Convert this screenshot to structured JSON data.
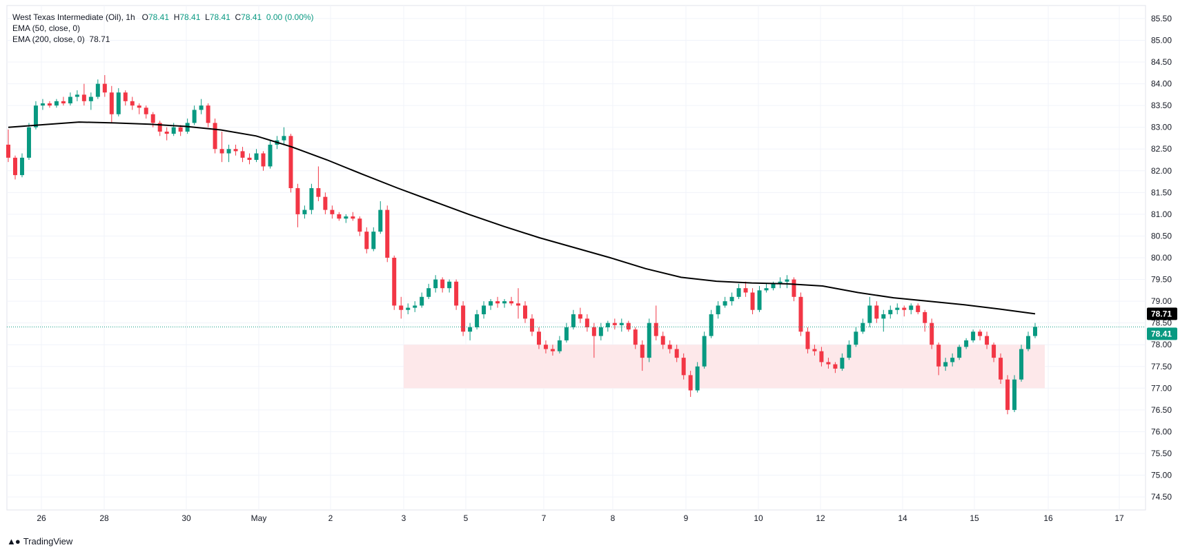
{
  "legend": {
    "symbol": "West Texas Intermediate (Oil), 1h",
    "open_label": "O",
    "open": "78.41",
    "high_label": "H",
    "high": "78.41",
    "low_label": "L",
    "low": "78.41",
    "close_label": "C",
    "close": "78.41",
    "change": "0.00 (0.00%)",
    "ema50": "EMA (50, close, 0)",
    "ema200": "EMA (200, close, 0)",
    "ema200_value": "78.71"
  },
  "brand": {
    "name": "TradingView"
  },
  "colors": {
    "up": "#089981",
    "down": "#f23645",
    "ema": "#000000",
    "zone": "#fde8ea",
    "price_badge": "#089981",
    "ema_badge": "#000000"
  },
  "chart_data": {
    "type": "candlestick",
    "ylim": [
      74.2,
      85.8
    ],
    "price_ticks": [
      "85.50",
      "85.00",
      "84.50",
      "84.00",
      "83.50",
      "83.00",
      "82.50",
      "82.00",
      "81.50",
      "81.00",
      "80.50",
      "80.00",
      "79.50",
      "79.00",
      "78.50",
      "78.00",
      "77.50",
      "77.00",
      "76.50",
      "76.00",
      "75.50",
      "75.00",
      "74.50"
    ],
    "date_ticks": [
      "26",
      "28",
      "30",
      "May",
      "2",
      "3",
      "5",
      "7",
      "8",
      "9",
      "10",
      "12",
      "14",
      "15",
      "16",
      "17"
    ],
    "last_price": "78.41",
    "ema200_last": "78.71",
    "support_zone": {
      "low": 77.0,
      "high": 78.0,
      "from": "3",
      "to": "16"
    },
    "ema200": [
      83.0,
      83.06,
      83.12,
      83.1,
      83.07,
      83.02,
      82.94,
      82.8,
      82.55,
      82.25,
      81.92,
      81.6,
      81.3,
      81.0,
      80.72,
      80.46,
      80.23,
      80.0,
      79.75,
      79.55,
      79.46,
      79.42,
      79.4,
      79.35,
      79.2,
      79.08,
      79.0,
      78.92,
      78.82,
      78.71
    ],
    "candles": [
      [
        82.6,
        82.95,
        82.2,
        82.3
      ],
      [
        82.3,
        82.35,
        81.8,
        81.9
      ],
      [
        81.9,
        82.4,
        81.85,
        82.3
      ],
      [
        82.3,
        83.1,
        82.25,
        83.0
      ],
      [
        83.0,
        83.6,
        82.95,
        83.5
      ],
      [
        83.5,
        83.65,
        83.4,
        83.55
      ],
      [
        83.55,
        83.6,
        83.45,
        83.5
      ],
      [
        83.5,
        83.65,
        83.45,
        83.6
      ],
      [
        83.6,
        83.7,
        83.5,
        83.55
      ],
      [
        83.55,
        83.8,
        83.5,
        83.7
      ],
      [
        83.7,
        83.85,
        83.6,
        83.75
      ],
      [
        83.75,
        84.0,
        83.5,
        83.6
      ],
      [
        83.6,
        83.8,
        83.4,
        83.7
      ],
      [
        83.7,
        84.1,
        83.65,
        84.0
      ],
      [
        84.0,
        84.2,
        83.7,
        83.8
      ],
      [
        83.8,
        83.95,
        83.1,
        83.3
      ],
      [
        83.3,
        83.9,
        83.25,
        83.8
      ],
      [
        83.8,
        83.85,
        83.5,
        83.6
      ],
      [
        83.6,
        83.7,
        83.4,
        83.5
      ],
      [
        83.5,
        83.55,
        83.3,
        83.45
      ],
      [
        83.45,
        83.5,
        83.2,
        83.3
      ],
      [
        83.3,
        83.35,
        83.0,
        83.1
      ],
      [
        83.1,
        83.15,
        82.8,
        82.9
      ],
      [
        82.9,
        83.0,
        82.7,
        82.85
      ],
      [
        82.85,
        83.1,
        82.8,
        83.0
      ],
      [
        83.0,
        83.05,
        82.8,
        82.9
      ],
      [
        82.9,
        83.2,
        82.85,
        83.1
      ],
      [
        83.1,
        83.5,
        83.05,
        83.4
      ],
      [
        83.4,
        83.65,
        83.3,
        83.5
      ],
      [
        83.5,
        83.55,
        83.0,
        83.1
      ],
      [
        83.1,
        83.2,
        82.4,
        82.5
      ],
      [
        82.5,
        82.9,
        82.2,
        82.4
      ],
      [
        82.4,
        82.6,
        82.2,
        82.5
      ],
      [
        82.5,
        82.6,
        82.35,
        82.45
      ],
      [
        82.45,
        82.55,
        82.2,
        82.3
      ],
      [
        82.3,
        82.4,
        82.15,
        82.25
      ],
      [
        82.25,
        82.5,
        82.2,
        82.4
      ],
      [
        82.4,
        82.45,
        82.0,
        82.1
      ],
      [
        82.1,
        82.7,
        82.05,
        82.6
      ],
      [
        82.6,
        82.8,
        82.5,
        82.7
      ],
      [
        82.7,
        83.0,
        82.6,
        82.8
      ],
      [
        82.8,
        82.85,
        81.5,
        81.6
      ],
      [
        81.6,
        81.7,
        80.7,
        81.0
      ],
      [
        81.0,
        81.2,
        80.9,
        81.1
      ],
      [
        81.1,
        81.7,
        81.0,
        81.6
      ],
      [
        81.6,
        82.1,
        81.3,
        81.4
      ],
      [
        81.4,
        81.5,
        81.0,
        81.1
      ],
      [
        81.1,
        81.2,
        80.9,
        81.0
      ],
      [
        81.0,
        81.05,
        80.85,
        80.9
      ],
      [
        80.9,
        81.0,
        80.8,
        80.95
      ],
      [
        80.95,
        81.05,
        80.85,
        80.9
      ],
      [
        80.9,
        80.95,
        80.5,
        80.6
      ],
      [
        80.6,
        80.7,
        80.1,
        80.2
      ],
      [
        80.2,
        80.7,
        80.15,
        80.6
      ],
      [
        80.6,
        81.3,
        80.55,
        81.1
      ],
      [
        81.1,
        81.2,
        79.9,
        80.0
      ],
      [
        80.0,
        80.05,
        78.8,
        78.9
      ],
      [
        78.9,
        79.1,
        78.6,
        78.8
      ],
      [
        78.8,
        78.95,
        78.7,
        78.85
      ],
      [
        78.85,
        79.0,
        78.75,
        78.9
      ],
      [
        78.9,
        79.2,
        78.85,
        79.1
      ],
      [
        79.1,
        79.4,
        79.05,
        79.3
      ],
      [
        79.3,
        79.6,
        79.2,
        79.5
      ],
      [
        79.5,
        79.55,
        79.2,
        79.3
      ],
      [
        79.3,
        79.5,
        79.2,
        79.45
      ],
      [
        79.45,
        79.5,
        78.8,
        78.9
      ],
      [
        78.9,
        79.0,
        78.2,
        78.3
      ],
      [
        78.3,
        78.5,
        78.1,
        78.4
      ],
      [
        78.4,
        78.8,
        78.35,
        78.7
      ],
      [
        78.7,
        79.0,
        78.6,
        78.9
      ],
      [
        78.9,
        79.05,
        78.8,
        79.0
      ],
      [
        79.0,
        79.1,
        78.85,
        78.95
      ],
      [
        78.95,
        79.05,
        78.85,
        79.0
      ],
      [
        79.0,
        79.1,
        78.9,
        78.95
      ],
      [
        78.95,
        79.3,
        78.6,
        78.9
      ],
      [
        78.9,
        79.0,
        78.5,
        78.6
      ],
      [
        78.6,
        78.7,
        78.2,
        78.3
      ],
      [
        78.3,
        78.4,
        77.9,
        78.0
      ],
      [
        78.0,
        78.1,
        77.8,
        77.9
      ],
      [
        77.9,
        78.0,
        77.75,
        77.85
      ],
      [
        77.85,
        78.2,
        77.8,
        78.1
      ],
      [
        78.1,
        78.5,
        78.05,
        78.4
      ],
      [
        78.4,
        78.8,
        78.35,
        78.7
      ],
      [
        78.7,
        78.85,
        78.5,
        78.6
      ],
      [
        78.6,
        78.7,
        78.3,
        78.4
      ],
      [
        78.4,
        78.5,
        77.7,
        78.2
      ],
      [
        78.2,
        78.5,
        78.1,
        78.4
      ],
      [
        78.4,
        78.55,
        78.3,
        78.5
      ],
      [
        78.5,
        78.6,
        78.35,
        78.45
      ],
      [
        78.45,
        78.6,
        78.3,
        78.5
      ],
      [
        78.5,
        78.55,
        78.3,
        78.35
      ],
      [
        78.35,
        78.4,
        77.9,
        78.0
      ],
      [
        78.0,
        78.1,
        77.4,
        77.7
      ],
      [
        77.7,
        78.6,
        77.6,
        78.5
      ],
      [
        78.5,
        78.9,
        78.1,
        78.2
      ],
      [
        78.2,
        78.3,
        77.9,
        78.0
      ],
      [
        78.0,
        78.1,
        77.8,
        77.9
      ],
      [
        77.9,
        78.0,
        77.6,
        77.7
      ],
      [
        77.7,
        77.8,
        77.2,
        77.3
      ],
      [
        77.3,
        77.4,
        76.8,
        76.95
      ],
      [
        76.95,
        77.6,
        76.9,
        77.5
      ],
      [
        77.5,
        78.3,
        77.45,
        78.2
      ],
      [
        78.2,
        78.8,
        78.15,
        78.7
      ],
      [
        78.7,
        79.0,
        78.6,
        78.9
      ],
      [
        78.9,
        79.1,
        78.85,
        79.0
      ],
      [
        79.0,
        79.2,
        78.9,
        79.1
      ],
      [
        79.1,
        79.4,
        79.05,
        79.3
      ],
      [
        79.3,
        79.45,
        79.1,
        79.2
      ],
      [
        79.2,
        79.3,
        78.7,
        78.8
      ],
      [
        78.8,
        79.35,
        78.75,
        79.25
      ],
      [
        79.25,
        79.4,
        79.2,
        79.3
      ],
      [
        79.3,
        79.45,
        79.25,
        79.4
      ],
      [
        79.4,
        79.55,
        79.3,
        79.45
      ],
      [
        79.45,
        79.6,
        79.3,
        79.5
      ],
      [
        79.5,
        79.55,
        79.0,
        79.1
      ],
      [
        79.1,
        79.2,
        78.2,
        78.3
      ],
      [
        78.3,
        78.4,
        77.8,
        77.9
      ],
      [
        77.9,
        78.0,
        77.75,
        77.85
      ],
      [
        77.85,
        77.95,
        77.5,
        77.6
      ],
      [
        77.6,
        77.7,
        77.45,
        77.55
      ],
      [
        77.55,
        77.6,
        77.35,
        77.45
      ],
      [
        77.45,
        77.8,
        77.4,
        77.7
      ],
      [
        77.7,
        78.1,
        77.65,
        78.0
      ],
      [
        78.0,
        78.4,
        77.95,
        78.3
      ],
      [
        78.3,
        78.6,
        78.25,
        78.5
      ],
      [
        78.5,
        79.1,
        78.4,
        78.9
      ],
      [
        78.9,
        79.0,
        78.5,
        78.6
      ],
      [
        78.6,
        78.8,
        78.3,
        78.7
      ],
      [
        78.7,
        78.9,
        78.6,
        78.8
      ],
      [
        78.8,
        78.95,
        78.7,
        78.85
      ],
      [
        78.85,
        78.9,
        78.65,
        78.8
      ],
      [
        78.8,
        78.95,
        78.7,
        78.9
      ],
      [
        78.9,
        78.95,
        78.7,
        78.75
      ],
      [
        78.75,
        78.8,
        78.3,
        78.5
      ],
      [
        78.5,
        78.6,
        77.9,
        78.0
      ],
      [
        78.0,
        78.05,
        77.3,
        77.5
      ],
      [
        77.5,
        77.7,
        77.4,
        77.6
      ],
      [
        77.6,
        77.8,
        77.5,
        77.7
      ],
      [
        77.7,
        78.0,
        77.65,
        77.95
      ],
      [
        77.95,
        78.15,
        77.9,
        78.1
      ],
      [
        78.1,
        78.35,
        78.05,
        78.3
      ],
      [
        78.3,
        78.35,
        78.1,
        78.2
      ],
      [
        78.2,
        78.3,
        77.9,
        78.0
      ],
      [
        78.0,
        78.05,
        77.6,
        77.7
      ],
      [
        77.7,
        77.8,
        77.1,
        77.2
      ],
      [
        77.2,
        77.3,
        76.4,
        76.5
      ],
      [
        76.5,
        77.3,
        76.45,
        77.2
      ],
      [
        77.2,
        78.0,
        77.15,
        77.9
      ],
      [
        77.9,
        78.3,
        77.85,
        78.2
      ],
      [
        78.2,
        78.5,
        78.15,
        78.41
      ]
    ]
  }
}
